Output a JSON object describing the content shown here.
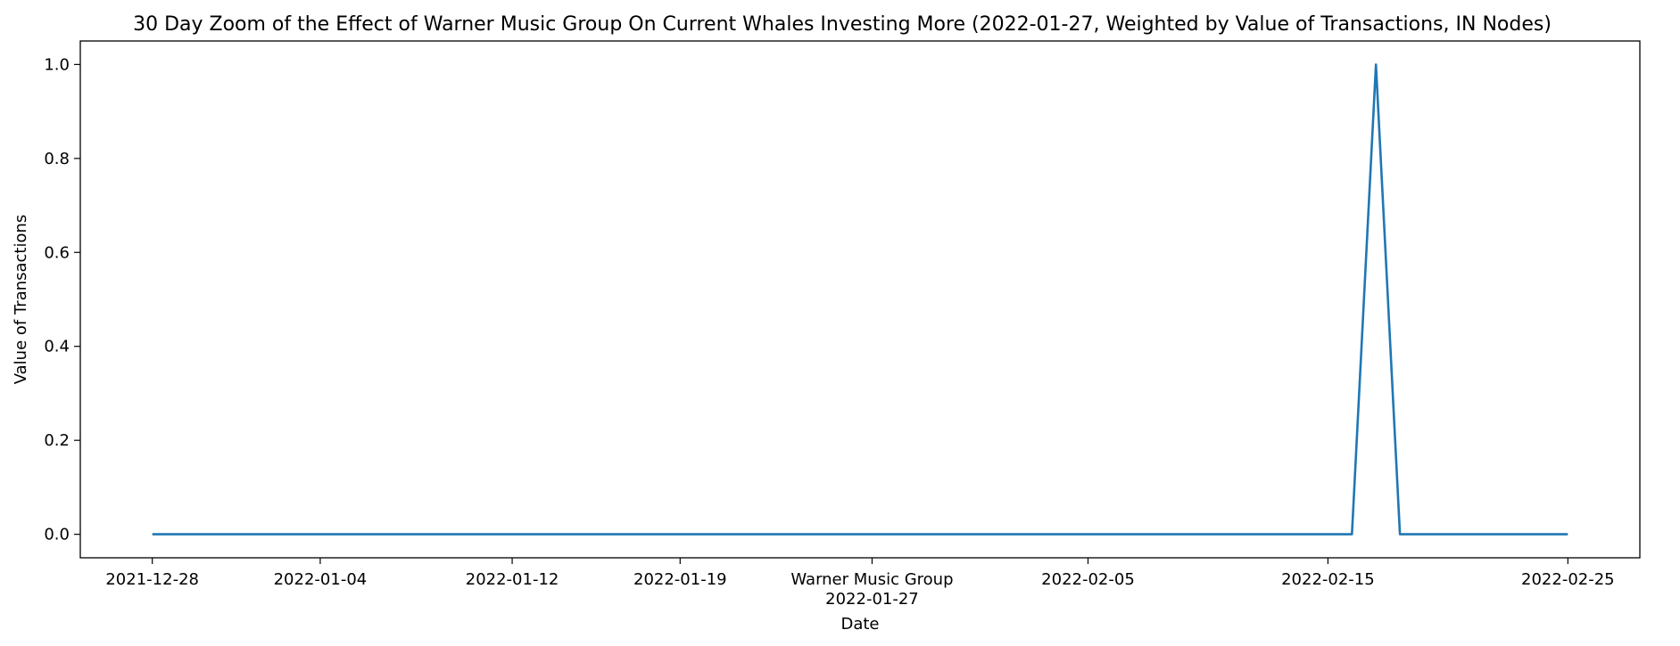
{
  "chart_data": {
    "type": "line",
    "title": "30 Day Zoom of the Effect of Warner Music Group On Current Whales Investing More (2022-01-27, Weighted by Value of Transactions, IN Nodes)",
    "xlabel": "Date",
    "ylabel": "Value of Transactions",
    "x_range": [
      "2021-12-25",
      "2022-02-28"
    ],
    "ylim": [
      -0.05,
      1.05
    ],
    "y_ticks": [
      0.0,
      0.2,
      0.4,
      0.6,
      0.8,
      1.0
    ],
    "y_tick_labels": [
      "0.0",
      "0.2",
      "0.4",
      "0.6",
      "0.8",
      "1.0"
    ],
    "x_ticks": [
      {
        "date": "2021-12-28",
        "label": "2021-12-28"
      },
      {
        "date": "2022-01-04",
        "label": "2022-01-04"
      },
      {
        "date": "2022-01-12",
        "label": "2022-01-12"
      },
      {
        "date": "2022-01-19",
        "label": "2022-01-19"
      },
      {
        "date": "2022-01-27",
        "label": "Warner Music Group\n2022-01-27"
      },
      {
        "date": "2022-02-05",
        "label": "2022-02-05"
      },
      {
        "date": "2022-02-15",
        "label": "2022-02-15"
      },
      {
        "date": "2022-02-25",
        "label": "2022-02-25"
      }
    ],
    "grid": false,
    "series": [
      {
        "color": "#1f77b4",
        "points": [
          {
            "x": "2021-12-28",
            "y": 0.0
          },
          {
            "x": "2022-02-16",
            "y": 0.0
          },
          {
            "x": "2022-02-17",
            "y": 1.0
          },
          {
            "x": "2022-02-18",
            "y": 0.0
          },
          {
            "x": "2022-02-25",
            "y": 0.0
          }
        ]
      }
    ]
  }
}
